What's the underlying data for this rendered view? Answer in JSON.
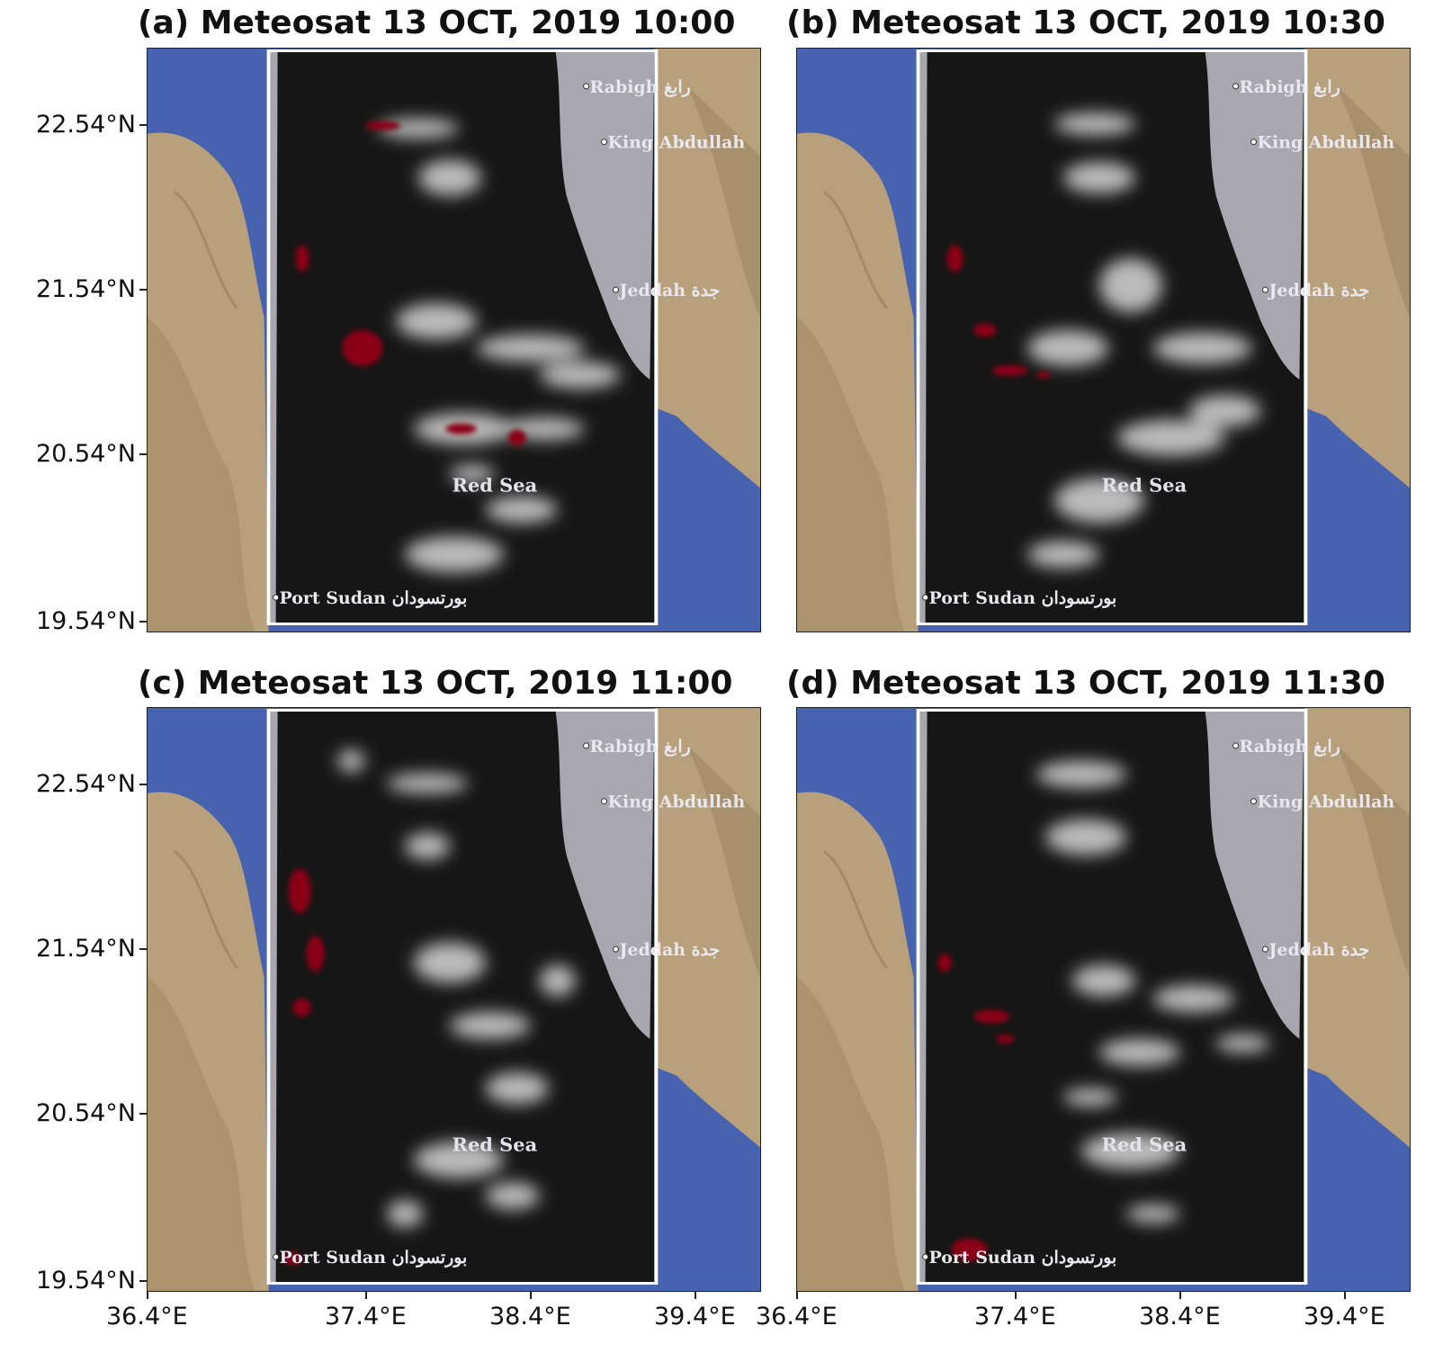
{
  "panels": [
    {
      "id": "a",
      "title": "(a) Meteosat 13 OCT, 2019 10:00",
      "show_lat_labels": true,
      "show_lon_labels": false
    },
    {
      "id": "b",
      "title": "(b) Meteosat 13 OCT, 2019 10:30",
      "show_lat_labels": false,
      "show_lon_labels": false
    },
    {
      "id": "c",
      "title": "(c) Meteosat 13 OCT, 2019 11:00",
      "show_lat_labels": true,
      "show_lon_labels": true
    },
    {
      "id": "d",
      "title": "(d) Meteosat 13 OCT, 2019 11:30",
      "show_lat_labels": false,
      "show_lon_labels": true
    }
  ],
  "lat_ticks": [
    "22.54°N",
    "21.54°N",
    "20.54°N",
    "19.54°N"
  ],
  "lon_ticks": [
    "36.4°E",
    "37.4°E",
    "38.4°E",
    "39.4°E"
  ],
  "places": {
    "rabigh": "Rabigh رابغ",
    "king_abdullah": "King Abdullah",
    "jeddah": "Jeddah جدة",
    "port_sudan": "Port Sudan بورتسودان",
    "red_sea": "Red Sea"
  },
  "colors": {
    "sea_blue": "#4763b0",
    "desert": "#b9a07c",
    "inset_background": "#161616",
    "land_mask": "#a8a6ae",
    "dust_high": "#8b0015",
    "cloud_white": "#f2f2f2"
  }
}
